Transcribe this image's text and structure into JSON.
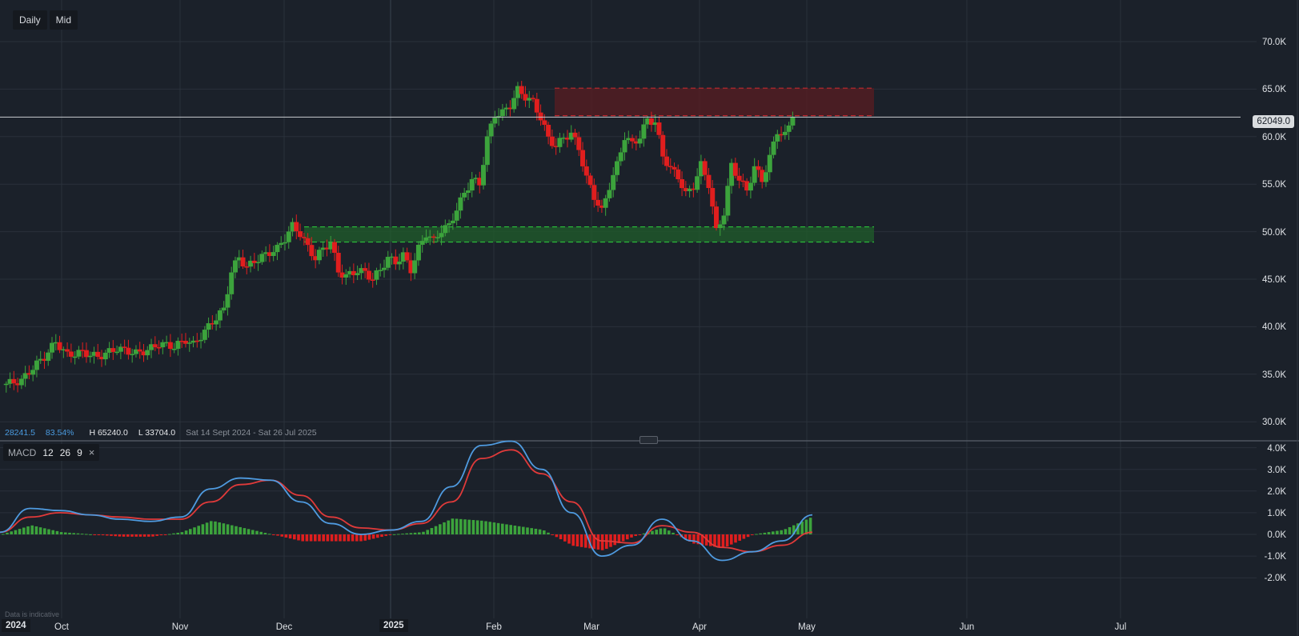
{
  "toolbar": {
    "interval_label": "Daily",
    "price_type_label": "Mid"
  },
  "stats": {
    "change": "28241.5",
    "change_pct": "83.54%",
    "high": "H 65240.0",
    "low": "L 33704.0",
    "range": "Sat 14 Sept 2024 - Sat 26 Jul 2025"
  },
  "current_price": "62049.0",
  "macd": {
    "label": "MACD",
    "fast": "12",
    "slow": "26",
    "signal": "9",
    "close_icon": "×"
  },
  "disclaimer": "Data is indicative",
  "colors": {
    "background": "#1b212a",
    "grid": "#2a313b",
    "up": "#3ca33c",
    "down": "#e01e1e",
    "macd_line": "#4f9be0",
    "signal_line": "#e03a3a",
    "resistance_zone": "#5a1c22",
    "support_zone": "#1f5a2a"
  },
  "price_axis": [
    "70.0K",
    "65.0K",
    "60.0K",
    "55.0K",
    "50.0K",
    "45.0K",
    "40.0K",
    "35.0K",
    "30.0K"
  ],
  "macd_axis": [
    "4.0K",
    "3.0K",
    "2.0K",
    "1.0K",
    "0.0K",
    "-1.0K",
    "-2.0K"
  ],
  "time_axis": [
    {
      "label": "2024",
      "year": true
    },
    {
      "label": "Oct"
    },
    {
      "label": "Nov"
    },
    {
      "label": "Dec"
    },
    {
      "label": "2025",
      "year": true
    },
    {
      "label": "Feb"
    },
    {
      "label": "Mar"
    },
    {
      "label": "Apr"
    },
    {
      "label": "May"
    },
    {
      "label": "Jun"
    },
    {
      "label": "Jul"
    }
  ],
  "chart_data": [
    {
      "type": "candlestick",
      "title": "Daily Mid price",
      "xlabel": "",
      "ylabel": "",
      "ylim": [
        30000,
        72000
      ],
      "x_range": [
        "2024-09-14",
        "2025-07-26"
      ],
      "high": 65240.0,
      "low": 33704.0,
      "last": 62049.0,
      "change": 28241.5,
      "change_pct": 83.54,
      "zones": [
        {
          "name": "resistance",
          "from": 62200,
          "to": 65100,
          "color": "#5a1c22"
        },
        {
          "name": "support",
          "from": 48900,
          "to": 50500,
          "color": "#1f5a2a"
        }
      ],
      "monthly_approx_close": [
        {
          "month": "2024-09",
          "close": 37500
        },
        {
          "month": "2024-10",
          "close": 38500
        },
        {
          "month": "2024-11",
          "close": 47800
        },
        {
          "month": "2024-12",
          "close": 45200
        },
        {
          "month": "2025-01",
          "close": 56000
        },
        {
          "month": "2025-02",
          "close": 58500
        },
        {
          "month": "2025-03",
          "close": 53200
        },
        {
          "month": "2025-04",
          "close": 62049
        }
      ],
      "grid": true
    },
    {
      "type": "line",
      "title": "MACD 12 26 9",
      "ylim": [
        -2500,
        4500
      ],
      "series": [
        {
          "name": "MACD",
          "color": "#4f9be0",
          "approx_values": [
            0.1,
            1.2,
            1.1,
            0.9,
            0.7,
            0.6,
            0.8,
            2.1,
            2.6,
            2.5,
            1.5,
            0.5,
            0,
            0.2,
            0.6,
            2.2,
            4.1,
            4.3,
            3.0,
            1.0,
            -1.0,
            -0.5,
            0.7,
            -0.3,
            -1.2,
            -0.8,
            -0.3,
            0.9
          ]
        },
        {
          "name": "Signal",
          "color": "#e03a3a",
          "approx_values": [
            0.1,
            0.8,
            1.0,
            0.9,
            0.8,
            0.7,
            0.7,
            1.5,
            2.3,
            2.5,
            1.8,
            0.8,
            0.3,
            0.2,
            0.5,
            1.5,
            3.5,
            3.9,
            2.8,
            1.5,
            -0.3,
            -0.4,
            0.4,
            0.1,
            -0.6,
            -0.8,
            -0.5,
            0.1
          ]
        },
        {
          "name": "Histogram",
          "approx_peak": 1.25,
          "approx_trough": -1.7
        }
      ]
    }
  ]
}
